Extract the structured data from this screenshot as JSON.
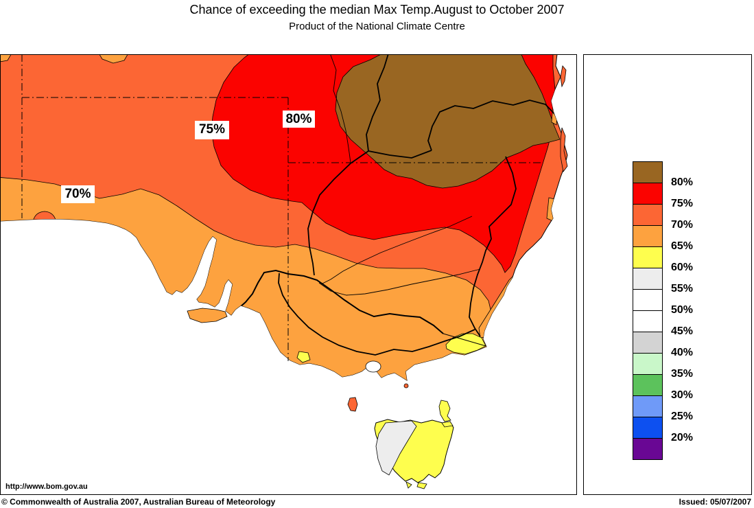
{
  "title": "Chance of exceeding the median Max Temp.August to October 2007",
  "subtitle": "Product of the National Climate Centre",
  "map": {
    "url_text": "http://www.bom.gov.au",
    "labels": [
      {
        "text": "70%"
      },
      {
        "text": "75%"
      },
      {
        "text": "80%"
      }
    ]
  },
  "colors": {
    "p80": "#996622",
    "p75": "#FB0300",
    "p70": "#FC6634",
    "p65": "#FDA23F",
    "p60": "#FEFE4E",
    "p55": "#EDEDED",
    "p50": "#FFFFFF",
    "p45": "#FFFFFF",
    "p40": "#D3D3D3",
    "p35": "#C9F7C9",
    "p30": "#5CC25C",
    "p25": "#6F9AF8",
    "p20": "#0D50F0",
    "under20": "#690794",
    "sea": "#FFFFFF",
    "outline": "#000000"
  },
  "legend": {
    "entries": [
      {
        "color": "#996622",
        "label": "80%"
      },
      {
        "color": "#FB0300",
        "label": "75%"
      },
      {
        "color": "#FC6634",
        "label": "70%"
      },
      {
        "color": "#FDA23F",
        "label": "65%"
      },
      {
        "color": "#FEFE4E",
        "label": "60%"
      },
      {
        "color": "#EDEDED",
        "label": "55%"
      },
      {
        "color": "#FFFFFF",
        "label": "50%"
      },
      {
        "color": "#FFFFFF",
        "label": "45%"
      },
      {
        "color": "#D3D3D3",
        "label": "40%"
      },
      {
        "color": "#C9F7C9",
        "label": "35%"
      },
      {
        "color": "#5CC25C",
        "label": "30%"
      },
      {
        "color": "#6F9AF8",
        "label": "25%"
      },
      {
        "color": "#0D50F0",
        "label": "20%"
      },
      {
        "color": "#690794",
        "label": null
      }
    ]
  },
  "footer": {
    "copyright": "© Commonwealth of Australia 2007, Australian Bureau of Meteorology",
    "issued": "Issued: 05/07/2007"
  }
}
